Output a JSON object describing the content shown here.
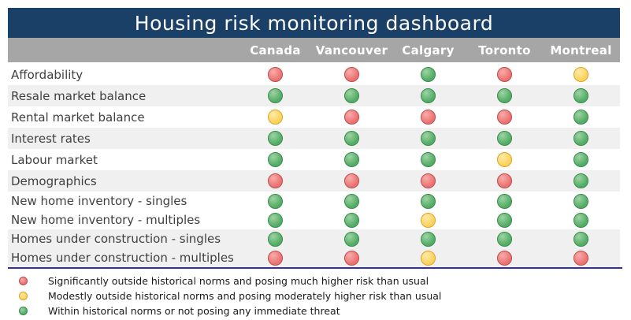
{
  "title": "Housing risk monitoring dashboard",
  "columns": [
    "Canada",
    "Vancouver",
    "Calgary",
    "Toronto",
    "Montreal"
  ],
  "rows": [
    {
      "label": "Affordability",
      "striped": false,
      "cells": [
        "red",
        "red",
        "green",
        "red",
        "yellow"
      ]
    },
    {
      "label": "Resale market balance",
      "striped": true,
      "cells": [
        "green",
        "green",
        "green",
        "green",
        "green"
      ]
    },
    {
      "label": "Rental market balance",
      "striped": false,
      "cells": [
        "yellow",
        "red",
        "red",
        "red",
        "green"
      ]
    },
    {
      "label": "Interest rates",
      "striped": true,
      "cells": [
        "green",
        "green",
        "green",
        "green",
        "green"
      ]
    },
    {
      "label": "Labour market",
      "striped": false,
      "cells": [
        "green",
        "green",
        "green",
        "yellow",
        "green"
      ]
    },
    {
      "label": "Demographics",
      "striped": true,
      "cells": [
        "red",
        "red",
        "red",
        "red",
        "green"
      ]
    },
    {
      "label": "New home inventory - singles",
      "striped": false,
      "cells": [
        "green",
        "green",
        "green",
        "green",
        "green"
      ]
    },
    {
      "label": "New home inventory - multiples",
      "striped": false,
      "cells": [
        "green",
        "green",
        "yellow",
        "green",
        "green"
      ]
    },
    {
      "label": "Homes under construction - singles",
      "striped": true,
      "cells": [
        "green",
        "green",
        "green",
        "green",
        "green"
      ]
    },
    {
      "label": "Homes under construction - multiples",
      "striped": true,
      "cells": [
        "red",
        "red",
        "yellow",
        "red",
        "red"
      ]
    }
  ],
  "legend": [
    {
      "status": "red",
      "text": "Significantly outside historical norms and posing much higher risk than usual"
    },
    {
      "status": "yellow",
      "text": "Modestly outside historical norms and posing moderately higher risk than usual"
    },
    {
      "status": "green",
      "text": "Within historical norms or not posing any immediate threat"
    }
  ],
  "colors": {
    "header_bg": "#1a4068",
    "header_text": "#ffffff",
    "subheader_bg": "#a6a6a6",
    "stripe_bg": "#f0f0f1",
    "row_text": "#3f3f3f",
    "divider": "#32329e",
    "status": {
      "red": {
        "fill": "#ec7272",
        "highlight": "#f6adab",
        "border": "#bf4a4a"
      },
      "yellow": {
        "fill": "#fbd35b",
        "highlight": "#fdeaa9",
        "border": "#d9a428"
      },
      "green": {
        "fill": "#53ad66",
        "highlight": "#9ed3a4",
        "border": "#3a8a4d"
      }
    }
  }
}
